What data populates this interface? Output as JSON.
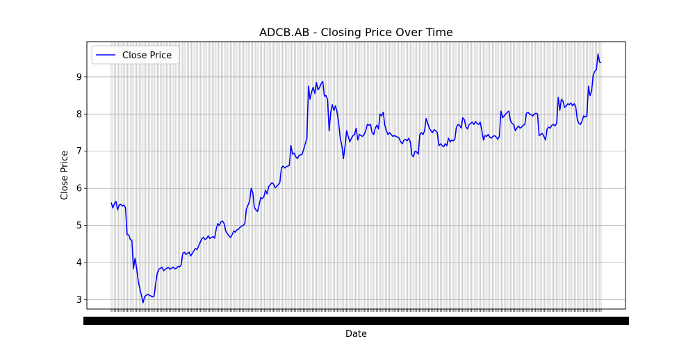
{
  "chart_data": {
    "type": "line",
    "title": "ADCB.AB - Closing Price Over Time",
    "xlabel": "Date",
    "ylabel": "Close Price",
    "ylim": [
      2.75,
      9.95
    ],
    "yticks": [
      3,
      4,
      5,
      6,
      7,
      8,
      9
    ],
    "grid": true,
    "x_tick_count": 330,
    "legend": {
      "position": "upper-left",
      "entries": [
        "Close Price"
      ]
    },
    "colors": {
      "line": "#0000ff",
      "grid": "#b0b0b0",
      "axes": "#000000"
    },
    "series": [
      {
        "name": "Close Price",
        "values": [
          5.62,
          5.47,
          5.58,
          5.65,
          5.42,
          5.55,
          5.57,
          5.52,
          5.55,
          5.48,
          4.75,
          4.75,
          4.62,
          4.6,
          3.84,
          4.12,
          3.85,
          3.5,
          3.3,
          3.12,
          2.92,
          3.08,
          3.12,
          3.15,
          3.12,
          3.1,
          3.08,
          3.1,
          3.45,
          3.72,
          3.82,
          3.85,
          3.87,
          3.78,
          3.82,
          3.85,
          3.87,
          3.82,
          3.85,
          3.88,
          3.83,
          3.85,
          3.9,
          3.88,
          3.95,
          4.25,
          4.28,
          4.22,
          4.25,
          4.28,
          4.18,
          4.25,
          4.32,
          4.38,
          4.35,
          4.45,
          4.55,
          4.65,
          4.68,
          4.62,
          4.65,
          4.72,
          4.65,
          4.68,
          4.7,
          4.66,
          4.9,
          5.05,
          5.0,
          5.1,
          5.12,
          5.05,
          4.85,
          4.78,
          4.72,
          4.68,
          4.75,
          4.85,
          4.82,
          4.88,
          4.9,
          4.95,
          4.98,
          5.0,
          5.05,
          5.45,
          5.55,
          5.65,
          6.0,
          5.88,
          5.48,
          5.42,
          5.38,
          5.55,
          5.75,
          5.72,
          5.78,
          5.95,
          5.85,
          6.05,
          6.1,
          6.15,
          6.12,
          6.02,
          6.05,
          6.1,
          6.15,
          6.55,
          6.6,
          6.55,
          6.58,
          6.6,
          6.62,
          7.15,
          6.92,
          6.95,
          6.85,
          6.8,
          6.88,
          6.9,
          6.92,
          7.05,
          7.2,
          7.35,
          8.75,
          8.4,
          8.6,
          8.72,
          8.55,
          8.85,
          8.65,
          8.72,
          8.82,
          8.88,
          8.48,
          8.5,
          8.4,
          7.55,
          8.05,
          8.25,
          8.1,
          8.22,
          8.05,
          7.75,
          7.35,
          7.15,
          6.8,
          7.15,
          7.55,
          7.4,
          7.25,
          7.35,
          7.42,
          7.45,
          7.62,
          7.3,
          7.45,
          7.42,
          7.4,
          7.45,
          7.55,
          7.72,
          7.7,
          7.72,
          7.5,
          7.45,
          7.62,
          7.7,
          7.6,
          8.0,
          7.95,
          8.05,
          7.7,
          7.55,
          7.45,
          7.5,
          7.45,
          7.4,
          7.42,
          7.4,
          7.38,
          7.35,
          7.25,
          7.2,
          7.3,
          7.32,
          7.28,
          7.35,
          7.25,
          6.9,
          6.85,
          7.0,
          6.98,
          6.92,
          7.45,
          7.5,
          7.45,
          7.55,
          7.88,
          7.75,
          7.62,
          7.55,
          7.5,
          7.58,
          7.55,
          7.5,
          7.15,
          7.2,
          7.15,
          7.12,
          7.2,
          7.15,
          7.35,
          7.25,
          7.3,
          7.28,
          7.32,
          7.65,
          7.72,
          7.7,
          7.62,
          7.9,
          7.85,
          7.65,
          7.6,
          7.72,
          7.75,
          7.78,
          7.72,
          7.8,
          7.75,
          7.72,
          7.78,
          7.55,
          7.3,
          7.42,
          7.4,
          7.45,
          7.38,
          7.35,
          7.4,
          7.42,
          7.38,
          7.32,
          7.4,
          8.08,
          7.9,
          7.95,
          8.0,
          8.05,
          8.08,
          7.82,
          7.75,
          7.72,
          7.55,
          7.62,
          7.68,
          7.62,
          7.65,
          7.7,
          7.72,
          8.02,
          8.05,
          8.0,
          7.98,
          7.95,
          8.0,
          8.02,
          8.0,
          7.42,
          7.45,
          7.48,
          7.4,
          7.3,
          7.6,
          7.65,
          7.62,
          7.7,
          7.72,
          7.68,
          7.75,
          8.45,
          8.1,
          8.4,
          8.35,
          8.18,
          8.22,
          8.28,
          8.25,
          8.3,
          8.22,
          8.28,
          8.2,
          7.85,
          7.75,
          7.72,
          7.82,
          7.95,
          7.92,
          7.95,
          8.75,
          8.5,
          8.62,
          9.05,
          9.15,
          9.2,
          9.62,
          9.4,
          9.38
        ]
      }
    ]
  }
}
